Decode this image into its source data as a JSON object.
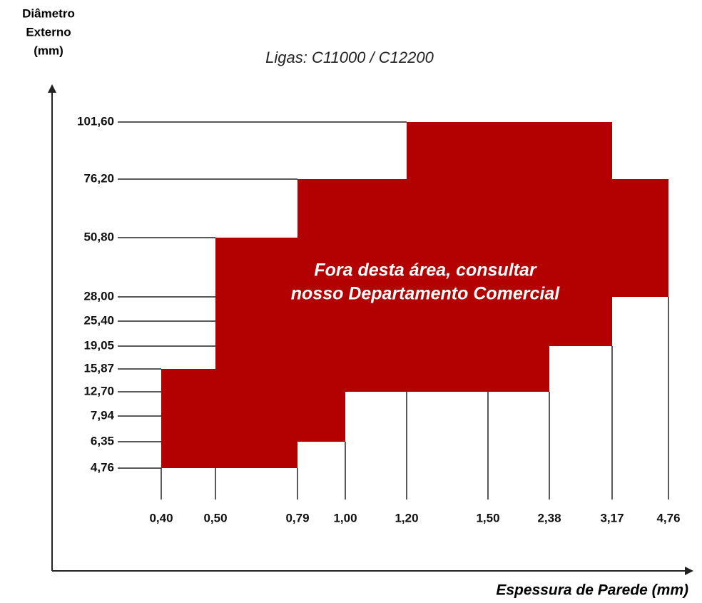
{
  "chart_data": {
    "type": "region",
    "title": "Ligas:  C11000 / C12200",
    "y_label": [
      "Diâmetro",
      "Externo",
      "(mm)"
    ],
    "x_label": "Espessura de Parede (mm)",
    "annotation": [
      "Fora desta área, consultar",
      "nosso Departamento Comercial"
    ],
    "xticks": [
      {
        "value": 0.4,
        "label": "0,40"
      },
      {
        "value": 0.5,
        "label": "0,50"
      },
      {
        "value": 0.79,
        "label": "0,79"
      },
      {
        "value": 1.0,
        "label": "1,00"
      },
      {
        "value": 1.2,
        "label": "1,20"
      },
      {
        "value": 1.5,
        "label": "1,50"
      },
      {
        "value": 2.38,
        "label": "2,38"
      },
      {
        "value": 3.17,
        "label": "3,17"
      },
      {
        "value": 4.76,
        "label": "4,76"
      }
    ],
    "yticks": [
      {
        "value": 101.6,
        "label": "101,60"
      },
      {
        "value": 76.2,
        "label": "76,20"
      },
      {
        "value": 50.8,
        "label": "50,80"
      },
      {
        "value": 28.0,
        "label": "28,00"
      },
      {
        "value": 25.4,
        "label": "25,40"
      },
      {
        "value": 19.05,
        "label": "19,05"
      },
      {
        "value": 15.87,
        "label": "15,87"
      },
      {
        "value": 12.7,
        "label": "12,70"
      },
      {
        "value": 7.94,
        "label": "7,94"
      },
      {
        "value": 6.35,
        "label": "6,35"
      },
      {
        "value": 4.76,
        "label": "4,76"
      }
    ],
    "region": {
      "color": "#b30000",
      "lower": [
        4.76,
        4.76,
        6.35,
        12.7,
        12.7,
        12.7,
        19.05,
        28.0
      ],
      "upper": [
        15.87,
        50.8,
        76.2,
        76.2,
        101.6,
        101.6,
        101.6,
        76.2
      ]
    }
  }
}
